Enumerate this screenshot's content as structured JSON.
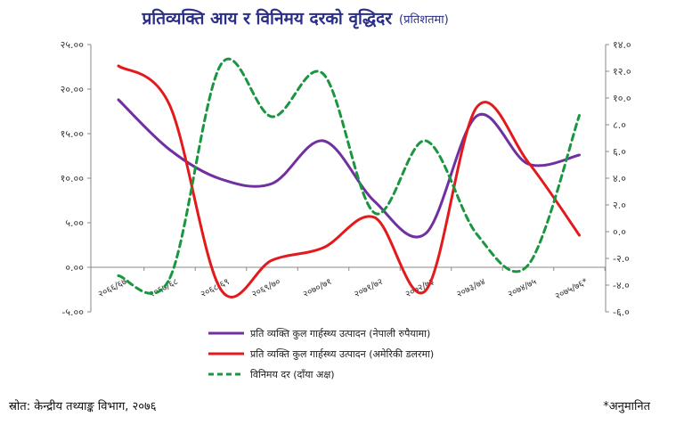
{
  "chart_data": {
    "type": "line",
    "title": "प्रतिव्यक्ति आय र विनिमय दरको वृद्धिदर",
    "subtitle": "(प्रतिशतमा)",
    "categories": [
      "२०६६/६७",
      "२०६७/६८",
      "२०६८/६९",
      "२०६९/७०",
      "२०७०/७१",
      "२०७१/७२",
      "२०७२/७३",
      "२०७३/७४",
      "२०७४/७५",
      "२०७५/७६*"
    ],
    "ylim_left": [
      -5,
      25
    ],
    "ylim_right": [
      -6,
      14
    ],
    "yticks_left": [
      "२५.००",
      "२०.००",
      "१५.००",
      "१०.००",
      "५.००",
      "०.००",
      "-५.००"
    ],
    "yticks_right": [
      "१४.०",
      "१२.०",
      "१०.०",
      "८.०",
      "६.०",
      "४.०",
      "२.०",
      "०.०",
      "-२.०",
      "-४.०",
      "-६.०"
    ],
    "series": [
      {
        "name": "प्रति व्यक्ति कुल गार्हस्थ्य उत्पादन (नेपाली रुपैयामा)",
        "axis": "left",
        "color": "#7030a0",
        "style": "solid",
        "values": [
          18.8,
          13.2,
          9.9,
          9.4,
          14.2,
          7.4,
          3.8,
          17.0,
          11.6,
          12.6
        ]
      },
      {
        "name": "प्रति व्यक्ति कुल गार्हस्थ्य उत्पादन (अमेरिकी डलरमा)",
        "axis": "left",
        "color": "#e31a1c",
        "style": "solid",
        "values": [
          22.6,
          18.2,
          -2.5,
          0.8,
          2.2,
          5.6,
          -2.6,
          18.0,
          11.8,
          3.6
        ]
      },
      {
        "name": "विनिमय दर (दाँया अक्ष)",
        "axis": "right",
        "color": "#1a9641",
        "style": "dashed",
        "values": [
          -3.3,
          -3.5,
          12.5,
          8.6,
          11.8,
          1.4,
          6.8,
          -0.2,
          -2.5,
          8.7
        ]
      }
    ]
  },
  "footer": {
    "source": "स्रोत: केन्द्रीय तथ्याङ्क विभाग, २०७६",
    "note": "*अनुमानित"
  }
}
